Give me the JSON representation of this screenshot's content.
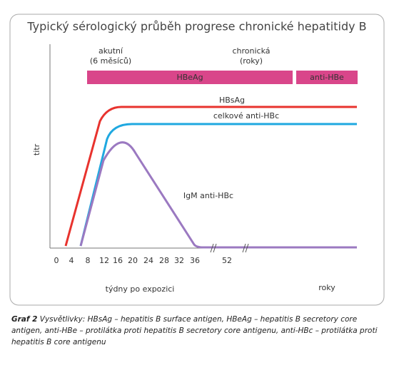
{
  "title": "Typický sérologický průběh progrese chronické hepatitidy B",
  "phases": [
    {
      "label": "akutní",
      "sublabel": "(6 měsíců)"
    },
    {
      "label": "chronická",
      "sublabel": "(roky)"
    }
  ],
  "bars": [
    "HBeAg",
    "anti-HBe"
  ],
  "curves": [
    "HBsAg",
    "celkové anti-HBc",
    "IgM anti-HBc"
  ],
  "y_axis_label": "titr",
  "x_ticks": [
    "0",
    "4",
    "8",
    "12",
    "16",
    "20",
    "24",
    "28",
    "32",
    "36",
    "52"
  ],
  "x_axis_label": "týdny po expozici",
  "x_axis_label_right": "roky",
  "caption": {
    "label": "Graf 2",
    "text": "Vysvětlivky: HBsAg – hepatitis B surface antigen, HBeAg – hepatitis B secretory core antigen, anti-HBe – protilátka proti hepatitis B secretory core antigenu, anti-HBc – protilátka proti hepatitis B core antigenu"
  }
}
